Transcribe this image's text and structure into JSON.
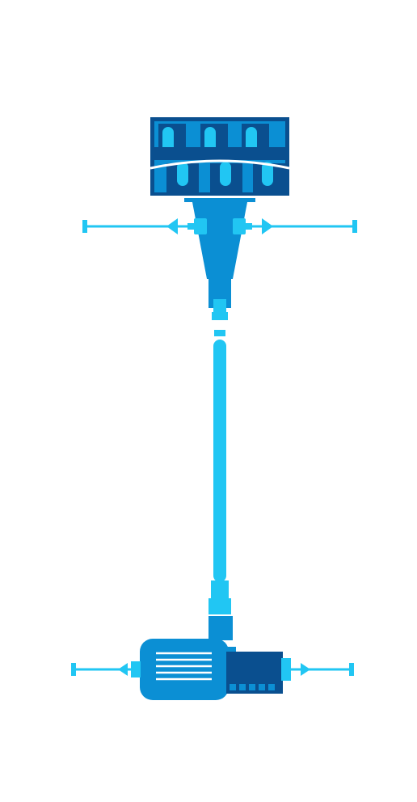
{
  "colors": {
    "dark": "#0a4f8f",
    "medium": "#0b8fd4",
    "light": "#21c6f3",
    "background": "#ffffff"
  },
  "components": {
    "tank": "filter-tank-icon",
    "hopper": "hopper-icon",
    "shaft": "vertical-pipe-icon",
    "pump": "motor-pump-icon",
    "valves": [
      "valve-icon",
      "valve-icon",
      "valve-icon",
      "valve-icon"
    ]
  }
}
